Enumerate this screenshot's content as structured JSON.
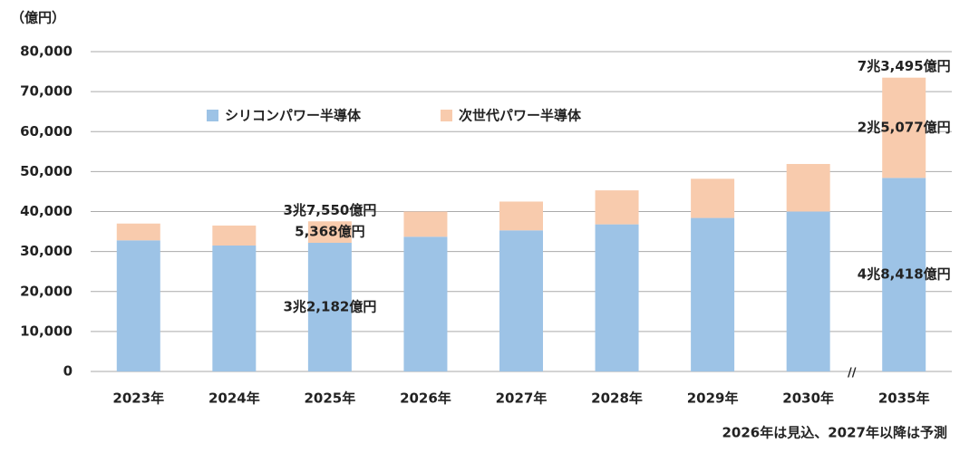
{
  "chart_data": {
    "type": "stacked_bar",
    "y_label": "（億円）",
    "categories": [
      "2023年",
      "2024年",
      "2025年",
      "2026年",
      "2027年",
      "2028年",
      "2029年",
      "2030年",
      "2035年"
    ],
    "series": [
      {
        "name": "シリコンパワー半導体",
        "color": "#9dc3e6",
        "values": [
          32800,
          31500,
          32182,
          33700,
          35300,
          36800,
          38400,
          40000,
          48418
        ],
        "value_labels": [
          null,
          null,
          "3兆2,182億円",
          null,
          null,
          null,
          null,
          null,
          "4兆8,418億円"
        ]
      },
      {
        "name": "次世代パワー半導体",
        "color": "#f8cbad",
        "values": [
          4200,
          5000,
          5368,
          6300,
          7200,
          8500,
          9800,
          11900,
          25077
        ],
        "value_labels": [
          null,
          null,
          "5,368億円",
          null,
          null,
          null,
          null,
          null,
          "2兆5,077億円"
        ]
      }
    ],
    "annotations": [
      {
        "category": "2025年",
        "value": 37550,
        "label": "3兆7,550億円"
      },
      {
        "category": "2035年",
        "value": 73495,
        "label": "7兆3,495億円"
      }
    ],
    "ylim": [
      0,
      80000
    ],
    "yticks": [
      0,
      {
        "value": 10000,
        "label": "10,000"
      },
      {
        "value": 20000,
        "label": "20,000"
      },
      {
        "value": 30000,
        "label": "30,000"
      },
      {
        "value": 40000,
        "label": "40,000"
      },
      {
        "value": 50000,
        "label": "50,000"
      },
      {
        "value": 60000,
        "label": "60,000"
      },
      {
        "value": 70000,
        "label": "70,000"
      },
      {
        "value": 80000,
        "label": "80,000"
      }
    ],
    "grid": true,
    "footnote": "2026年は見込、2027年以降は予測"
  }
}
